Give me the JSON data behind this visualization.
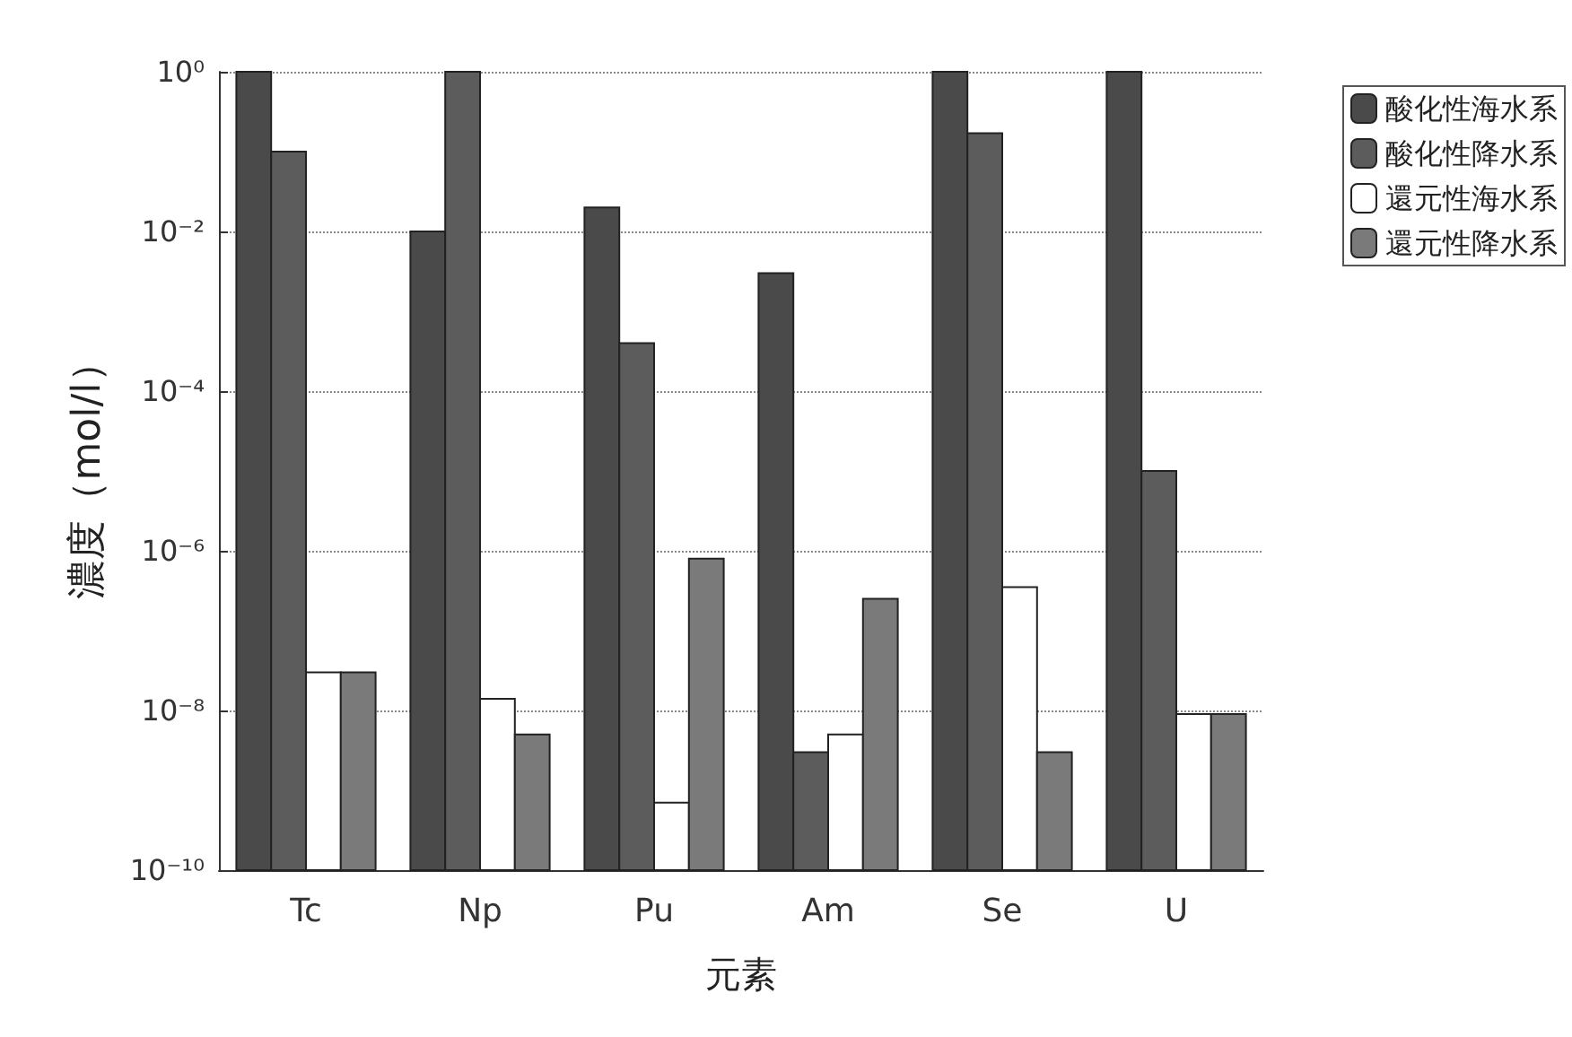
{
  "chart_data": {
    "type": "bar",
    "xlabel": "元素",
    "ylabel": "濃度（mol/l）",
    "categories": [
      "Tc",
      "Np",
      "Pu",
      "Am",
      "Se",
      "U"
    ],
    "series": [
      {
        "name": "酸化性海水系",
        "color": "#4a4a4a",
        "values": [
          1,
          0.01,
          0.02,
          0.003,
          1,
          1
        ]
      },
      {
        "name": "酸化性降水系",
        "color": "#5c5c5c",
        "values": [
          0.1,
          1,
          0.0004,
          3e-09,
          0.17,
          1e-05
        ]
      },
      {
        "name": "還元性海水系",
        "color": "#ffffff",
        "values": [
          3e-08,
          1.4e-08,
          7e-10,
          5e-09,
          3.5e-07,
          9e-09
        ]
      },
      {
        "name": "還元性降水系",
        "color": "#7a7a7a",
        "values": [
          3e-08,
          5e-09,
          8e-07,
          2.5e-07,
          3e-09,
          9e-09
        ]
      }
    ],
    "log": "y",
    "ylim": [
      1e-10,
      1
    ],
    "yticks": [
      {
        "value": 1e-10,
        "label": "10⁻¹⁰"
      },
      {
        "value": 1e-08,
        "label": "10⁻⁸"
      },
      {
        "value": 1e-06,
        "label": "10⁻⁶"
      },
      {
        "value": 0.0001,
        "label": "10⁻⁴"
      },
      {
        "value": 0.01,
        "label": "10⁻²"
      },
      {
        "value": 1,
        "label": "10⁰"
      }
    ],
    "grid": "y",
    "legend": "top right"
  }
}
